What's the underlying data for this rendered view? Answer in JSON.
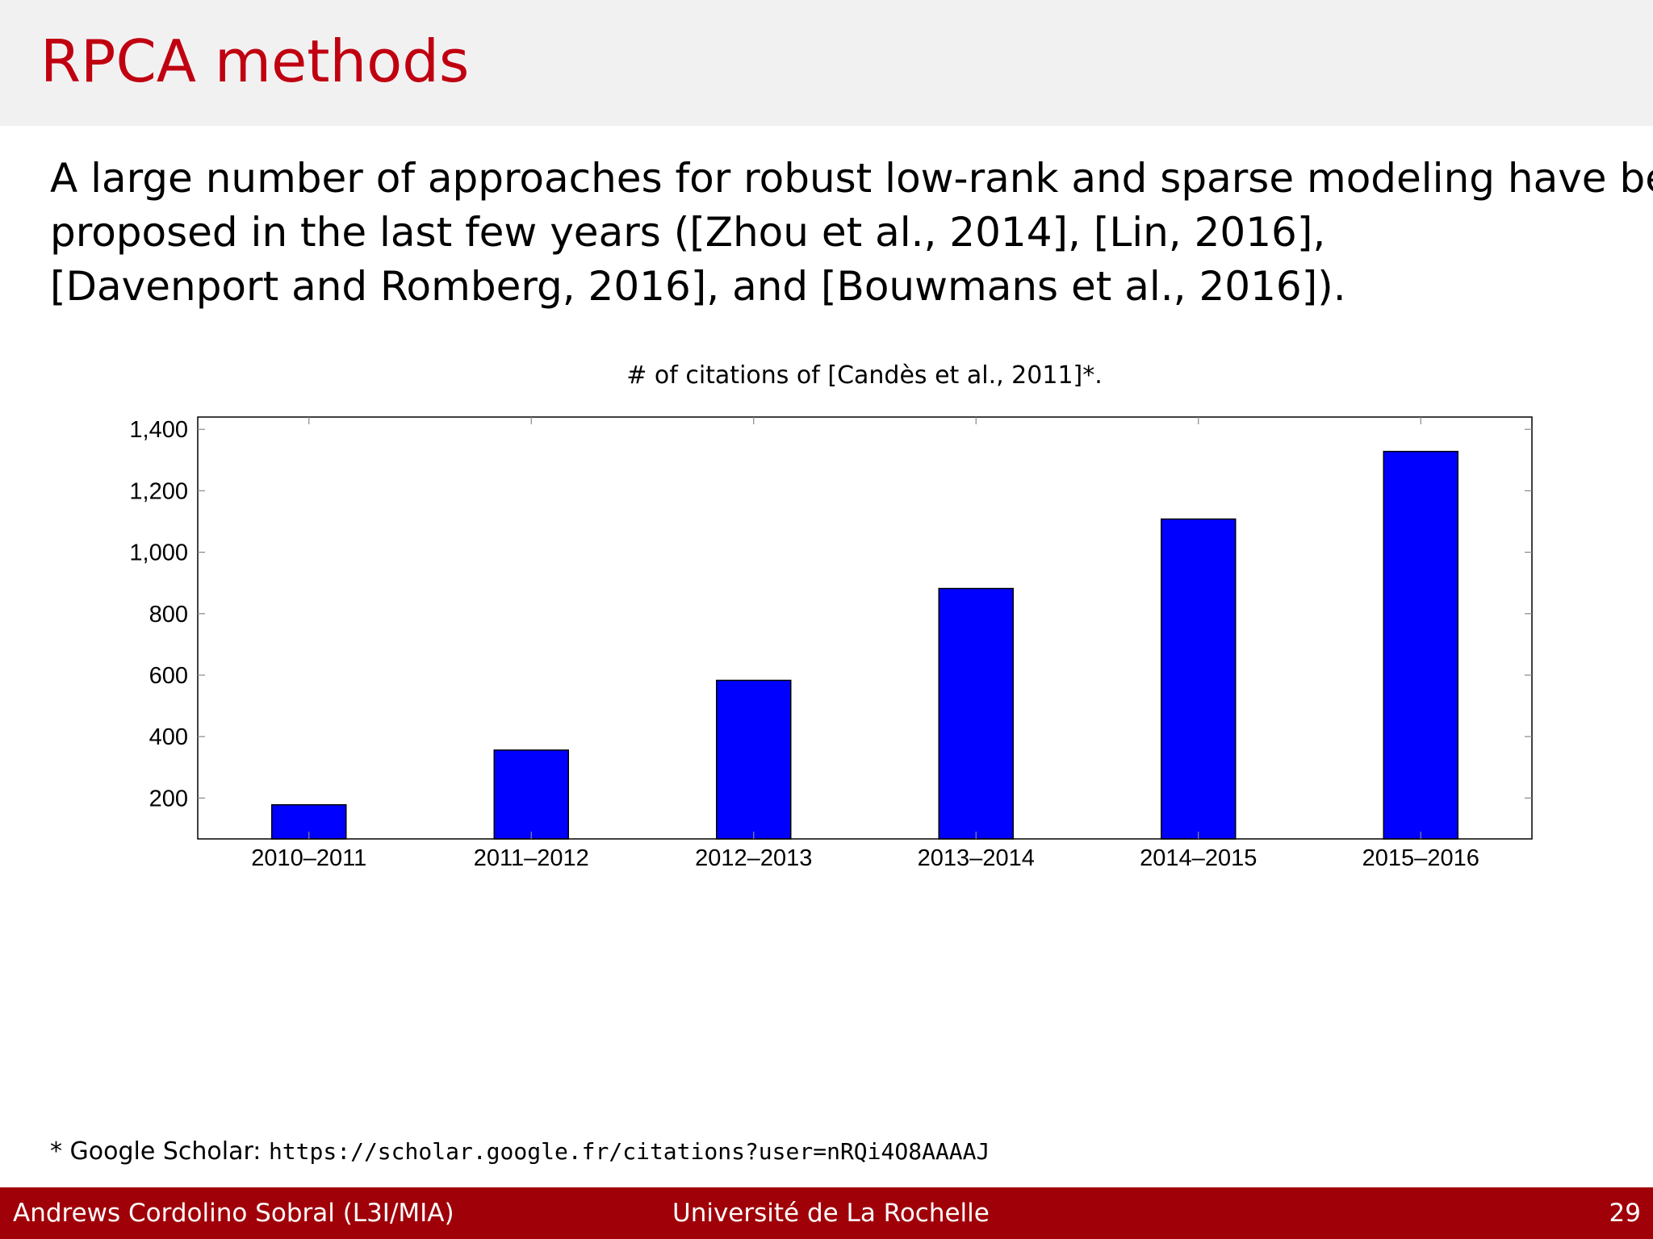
{
  "slide": {
    "title": "RPCA methods",
    "intro_lines": [
      "A large number of approaches for robust low-rank and sparse modeling have been",
      "proposed in the last few years ([Zhou et al., 2014], [Lin, 2016],",
      "[Davenport and Romberg, 2016], and [Bouwmans et al., 2016])."
    ],
    "footnote": {
      "prefix": "* Google Scholar: ",
      "url": "https://scholar.google.fr/citations?user=nRQi4O8AAAAJ"
    }
  },
  "footer": {
    "author": "Andrews Cordolino Sobral (L3I/MIA)",
    "institution": "Université de La Rochelle",
    "page": "29"
  },
  "colors": {
    "title": "#c00010",
    "bar_fill": "#0000ff",
    "footer_bg": "#a00008",
    "header_bg": "#f2f1f2"
  },
  "chart_data": {
    "type": "bar",
    "title": "# of citations of [Candès et al., 2011]*.",
    "xlabel": "",
    "ylabel": "",
    "categories": [
      "2010–2011",
      "2011–2012",
      "2012–2013",
      "2013–2014",
      "2014–2015",
      "2015–2016"
    ],
    "values": [
      178,
      356,
      583,
      882,
      1108,
      1328
    ],
    "ylim": [
      67,
      1440
    ],
    "yticks": [
      200,
      400,
      600,
      800,
      1000,
      1200,
      1400
    ],
    "ytick_labels": [
      "200",
      "400",
      "600",
      "800",
      "1,000",
      "1,200",
      "1,400"
    ],
    "grid": false,
    "legend": "none"
  }
}
